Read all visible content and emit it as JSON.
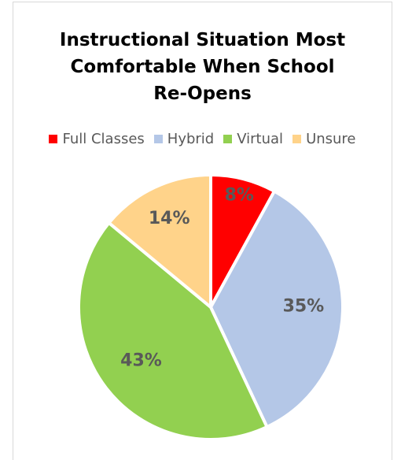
{
  "chart_data": {
    "type": "pie",
    "title_lines": [
      "Instructional Situation Most",
      "Comfortable When School",
      "Re-Opens"
    ],
    "categories": [
      "Full Classes",
      "Hybrid",
      "Virtual",
      "Unsure"
    ],
    "values": [
      8,
      35,
      43,
      14
    ],
    "data_labels": [
      "8%",
      "35%",
      "43%",
      "14%"
    ],
    "colors": [
      "#ff0000",
      "#b4c7e7",
      "#92d050",
      "#ffd38a"
    ],
    "legend_position": "top",
    "start_angle_deg": 0,
    "direction": "clockwise"
  }
}
